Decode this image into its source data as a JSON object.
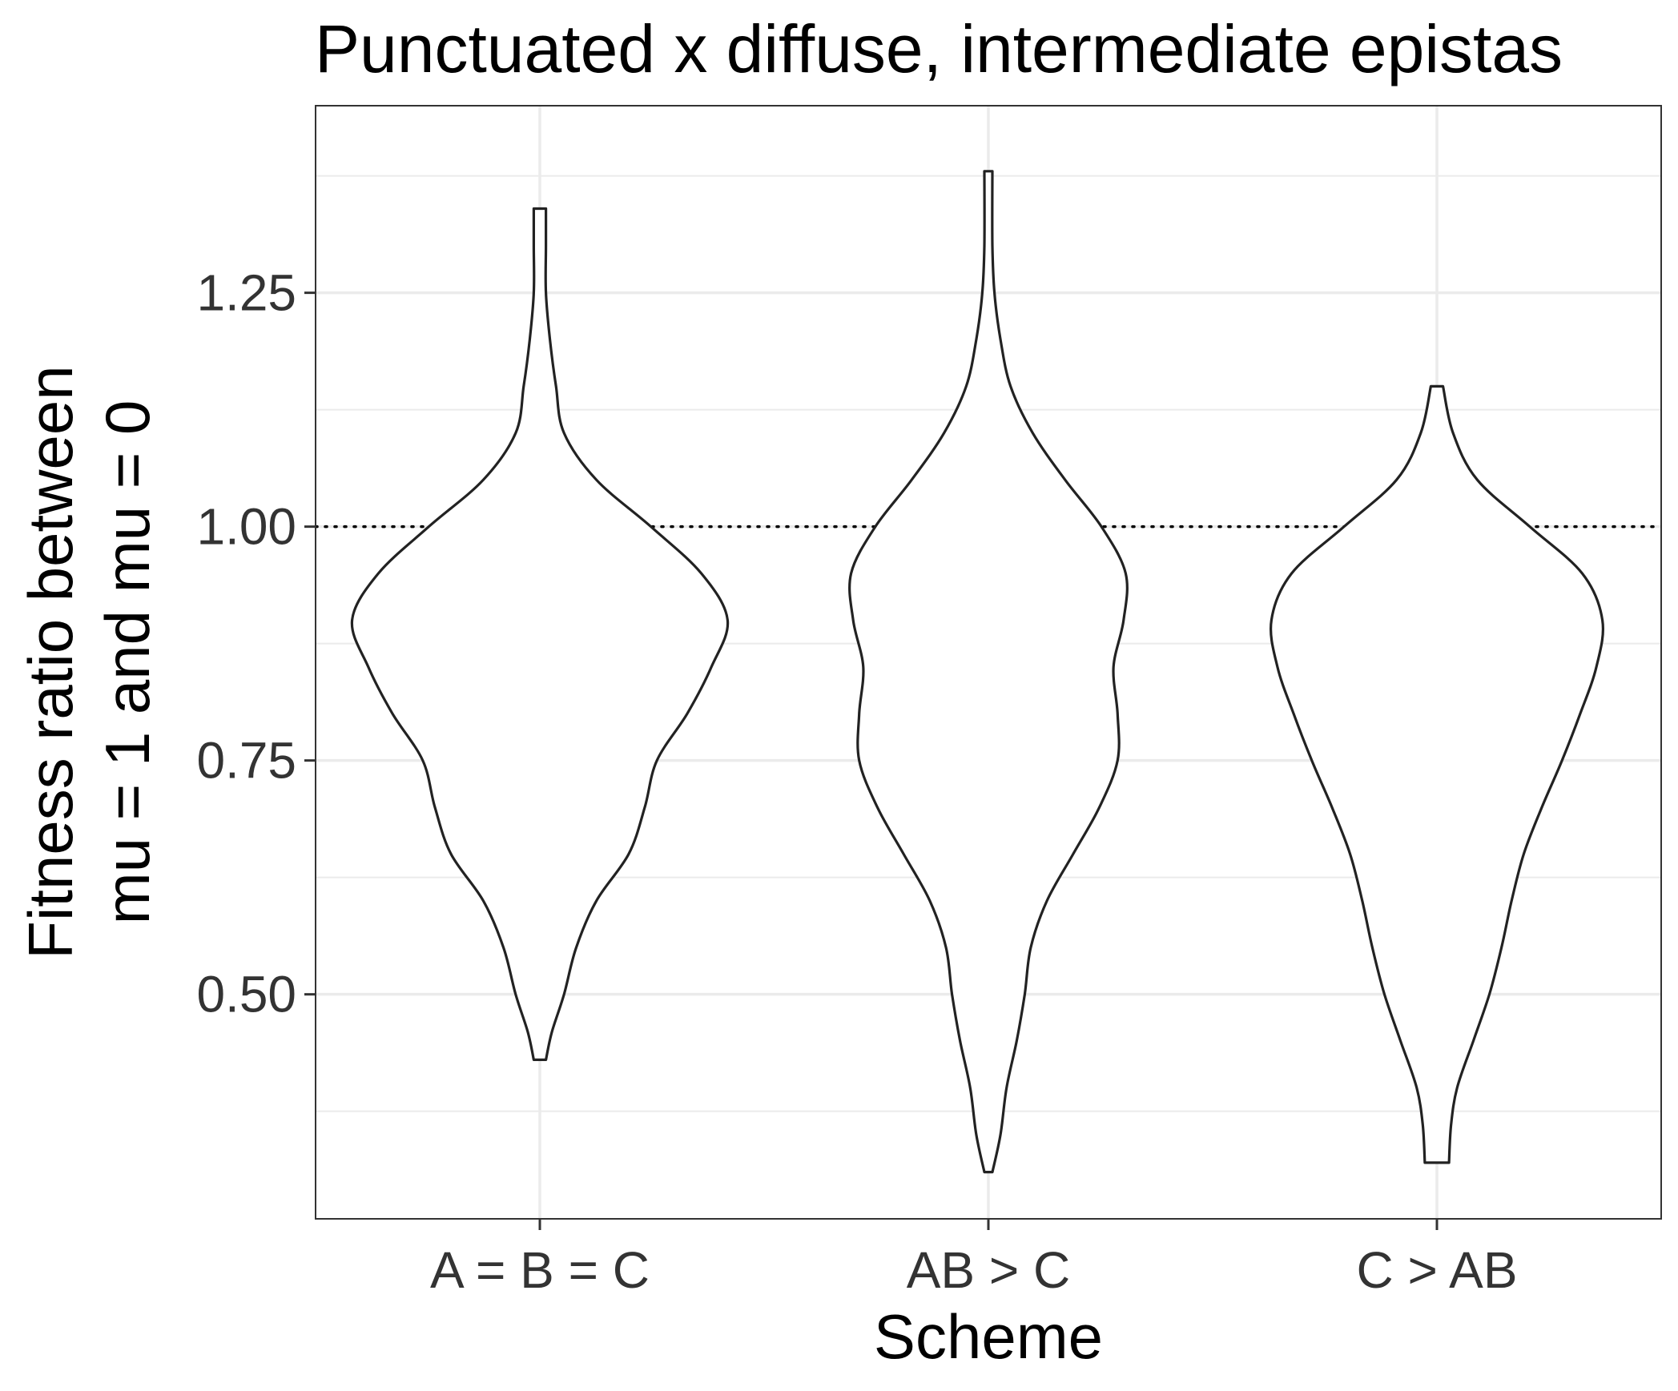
{
  "chart_data": {
    "type": "violin",
    "title": "Punctuated x diffuse, intermediate epistas",
    "xlabel": "Scheme",
    "ylabel_lines": [
      "Fitness ratio between",
      "mu = 1 and mu = 0"
    ],
    "categories": [
      "A = B = C",
      "AB > C",
      "C > AB"
    ],
    "ylim": [
      0.26,
      1.45
    ],
    "yticks": [
      0.5,
      0.75,
      1.0,
      1.25
    ],
    "ytick_labels": [
      "0.50",
      "0.75",
      "1.00",
      "1.25"
    ],
    "reference_line": {
      "y": 1.0,
      "style": "dotted"
    },
    "grid": true,
    "theme": "bw",
    "violins": [
      {
        "category": "A = B = C",
        "min": 0.43,
        "max": 1.34,
        "profile": [
          [
            0.43,
            0.03
          ],
          [
            0.46,
            0.06
          ],
          [
            0.5,
            0.12
          ],
          [
            0.55,
            0.18
          ],
          [
            0.6,
            0.28
          ],
          [
            0.65,
            0.44
          ],
          [
            0.7,
            0.52
          ],
          [
            0.75,
            0.58
          ],
          [
            0.8,
            0.73
          ],
          [
            0.85,
            0.85
          ],
          [
            0.9,
            0.93
          ],
          [
            0.95,
            0.8
          ],
          [
            1.0,
            0.55
          ],
          [
            1.05,
            0.28
          ],
          [
            1.1,
            0.12
          ],
          [
            1.15,
            0.08
          ],
          [
            1.2,
            0.05
          ],
          [
            1.25,
            0.03
          ],
          [
            1.3,
            0.03
          ],
          [
            1.34,
            0.03
          ]
        ]
      },
      {
        "category": "AB > C",
        "min": 0.31,
        "max": 1.38,
        "profile": [
          [
            0.31,
            0.02
          ],
          [
            0.35,
            0.06
          ],
          [
            0.4,
            0.09
          ],
          [
            0.45,
            0.14
          ],
          [
            0.5,
            0.18
          ],
          [
            0.55,
            0.21
          ],
          [
            0.6,
            0.29
          ],
          [
            0.65,
            0.42
          ],
          [
            0.7,
            0.55
          ],
          [
            0.75,
            0.64
          ],
          [
            0.8,
            0.64
          ],
          [
            0.85,
            0.62
          ],
          [
            0.9,
            0.67
          ],
          [
            0.95,
            0.68
          ],
          [
            1.0,
            0.56
          ],
          [
            1.05,
            0.38
          ],
          [
            1.1,
            0.22
          ],
          [
            1.15,
            0.11
          ],
          [
            1.2,
            0.06
          ],
          [
            1.25,
            0.03
          ],
          [
            1.3,
            0.02
          ],
          [
            1.38,
            0.02
          ]
        ]
      },
      {
        "category": "C > AB",
        "min": 0.32,
        "max": 1.15,
        "profile": [
          [
            0.32,
            0.06
          ],
          [
            0.36,
            0.07
          ],
          [
            0.4,
            0.1
          ],
          [
            0.45,
            0.18
          ],
          [
            0.5,
            0.26
          ],
          [
            0.55,
            0.32
          ],
          [
            0.6,
            0.37
          ],
          [
            0.65,
            0.43
          ],
          [
            0.7,
            0.52
          ],
          [
            0.75,
            0.62
          ],
          [
            0.8,
            0.71
          ],
          [
            0.85,
            0.79
          ],
          [
            0.9,
            0.82
          ],
          [
            0.95,
            0.72
          ],
          [
            1.0,
            0.46
          ],
          [
            1.05,
            0.2
          ],
          [
            1.1,
            0.08
          ],
          [
            1.15,
            0.03
          ]
        ]
      }
    ]
  }
}
